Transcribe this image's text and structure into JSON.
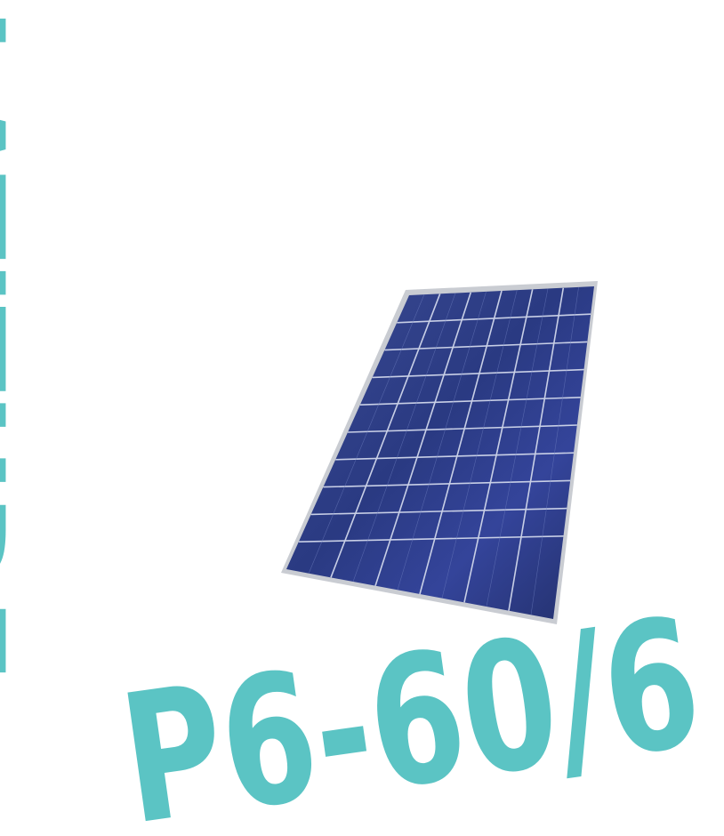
{
  "brand": {
    "name": "LATITUDE",
    "color": "#5bc4c4"
  },
  "model": {
    "code": "P6-60/6",
    "color": "#5bc4c4"
  },
  "product_image": {
    "icon": "solar-panel-icon",
    "cell_color": "#2f3f86",
    "frame_color": "#c9ccd2"
  }
}
